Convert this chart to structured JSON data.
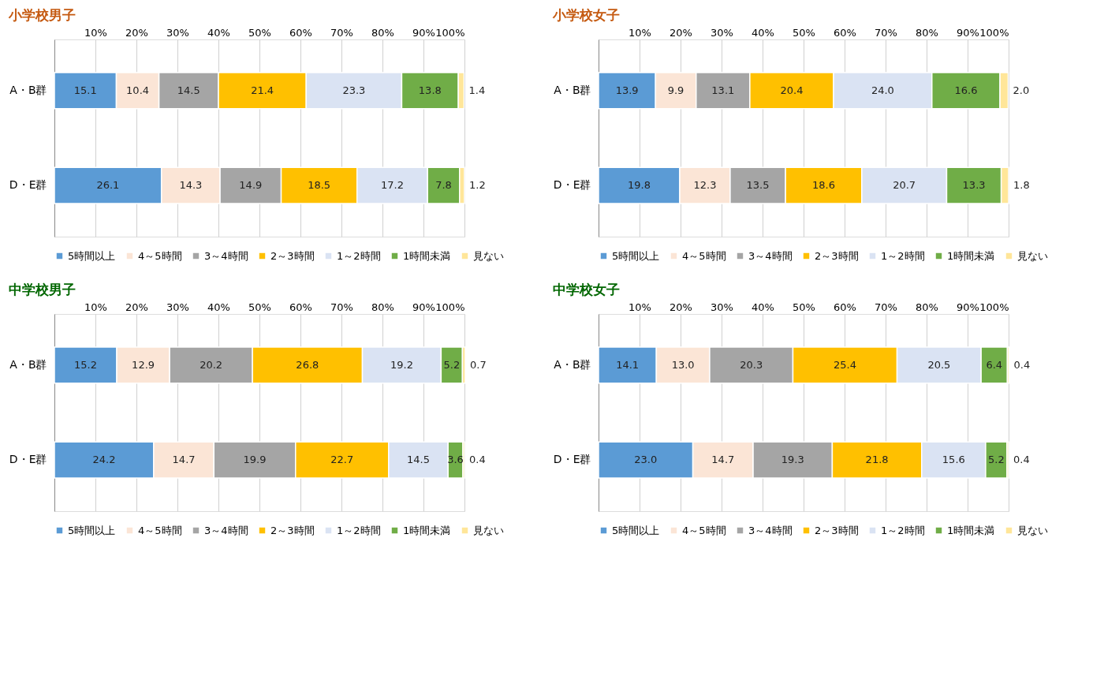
{
  "chart_data": [
    {
      "type": "bar",
      "title": "小学校男子",
      "orientation": "horizontal",
      "stacked": true,
      "categories": [
        "A・B群",
        "D・E群"
      ],
      "xlim": [
        0,
        100
      ],
      "xticks": [
        {
          "value": 10,
          "label": "10%"
        },
        {
          "value": 20,
          "label": "20%"
        },
        {
          "value": 30,
          "label": "30%"
        },
        {
          "value": 40,
          "label": "40%"
        },
        {
          "value": 50,
          "label": "50%"
        },
        {
          "value": 60,
          "label": "60%"
        },
        {
          "value": 70,
          "label": "70%"
        },
        {
          "value": 80,
          "label": "80%"
        },
        {
          "value": 90,
          "label": "90%"
        },
        {
          "value": 100,
          "label": "100%"
        }
      ],
      "grid": "x",
      "legend": "bottom",
      "data_labels": true,
      "series": [
        {
          "name": "5時間以上",
          "color": "#5b9bd5",
          "values": [
            15.1,
            26.1
          ]
        },
        {
          "name": "4～5時間",
          "color": "#fbe5d6",
          "values": [
            10.4,
            14.3
          ]
        },
        {
          "name": "3～4時間",
          "color": "#a5a5a5",
          "values": [
            14.5,
            14.9
          ]
        },
        {
          "name": "2～3時間",
          "color": "#ffc000",
          "values": [
            21.4,
            18.5
          ]
        },
        {
          "name": "1～2時間",
          "color": "#dae3f3",
          "values": [
            23.3,
            17.2
          ]
        },
        {
          "name": "1時間未満",
          "color": "#70ad47",
          "values": [
            13.8,
            7.8
          ]
        },
        {
          "name": "見ない",
          "color": "#ffe699",
          "values": [
            1.4,
            1.2
          ]
        }
      ]
    },
    {
      "type": "bar",
      "title": "小学校女子",
      "orientation": "horizontal",
      "stacked": true,
      "categories": [
        "A・B群",
        "D・E群"
      ],
      "xlim": [
        0,
        100
      ],
      "xticks": [
        {
          "value": 10,
          "label": "10%"
        },
        {
          "value": 20,
          "label": "20%"
        },
        {
          "value": 30,
          "label": "30%"
        },
        {
          "value": 40,
          "label": "40%"
        },
        {
          "value": 50,
          "label": "50%"
        },
        {
          "value": 60,
          "label": "60%"
        },
        {
          "value": 70,
          "label": "70%"
        },
        {
          "value": 80,
          "label": "80%"
        },
        {
          "value": 90,
          "label": "90%"
        },
        {
          "value": 100,
          "label": "100%"
        }
      ],
      "grid": "x",
      "legend": "bottom",
      "data_labels": true,
      "series": [
        {
          "name": "5時間以上",
          "color": "#5b9bd5",
          "values": [
            13.9,
            19.8
          ]
        },
        {
          "name": "4～5時間",
          "color": "#fbe5d6",
          "values": [
            9.9,
            12.3
          ]
        },
        {
          "name": "3～4時間",
          "color": "#a5a5a5",
          "values": [
            13.1,
            13.5
          ]
        },
        {
          "name": "2～3時間",
          "color": "#ffc000",
          "values": [
            20.4,
            18.6
          ]
        },
        {
          "name": "1～2時間",
          "color": "#dae3f3",
          "values": [
            24.0,
            20.7
          ],
          "value_labels": [
            "24.0",
            "20.7"
          ]
        },
        {
          "name": "1時間未満",
          "color": "#70ad47",
          "values": [
            16.6,
            13.3
          ]
        },
        {
          "name": "見ない",
          "color": "#ffe699",
          "values": [
            2.0,
            1.8
          ],
          "value_labels": [
            "2.0",
            "1.8"
          ]
        }
      ]
    },
    {
      "type": "bar",
      "title": "中学校男子",
      "orientation": "horizontal",
      "stacked": true,
      "categories": [
        "A・B群",
        "D・E群"
      ],
      "xlim": [
        0,
        100
      ],
      "xticks": [
        {
          "value": 10,
          "label": "10%"
        },
        {
          "value": 20,
          "label": "20%"
        },
        {
          "value": 30,
          "label": "30%"
        },
        {
          "value": 40,
          "label": "40%"
        },
        {
          "value": 50,
          "label": "50%"
        },
        {
          "value": 60,
          "label": "60%"
        },
        {
          "value": 70,
          "label": "70%"
        },
        {
          "value": 80,
          "label": "80%"
        },
        {
          "value": 90,
          "label": "90%"
        },
        {
          "value": 100,
          "label": "100%"
        }
      ],
      "grid": "x",
      "legend": "bottom",
      "data_labels": true,
      "series": [
        {
          "name": "5時間以上",
          "color": "#5b9bd5",
          "values": [
            15.2,
            24.2
          ]
        },
        {
          "name": "4～5時間",
          "color": "#fbe5d6",
          "values": [
            12.9,
            14.7
          ]
        },
        {
          "name": "3～4時間",
          "color": "#a5a5a5",
          "values": [
            20.2,
            19.9
          ]
        },
        {
          "name": "2～3時間",
          "color": "#ffc000",
          "values": [
            26.8,
            22.7
          ]
        },
        {
          "name": "1～2時間",
          "color": "#dae3f3",
          "values": [
            19.2,
            14.5
          ]
        },
        {
          "name": "1時間未満",
          "color": "#70ad47",
          "values": [
            5.2,
            3.6
          ]
        },
        {
          "name": "見ない",
          "color": "#ffe699",
          "values": [
            0.7,
            0.4
          ]
        }
      ]
    },
    {
      "type": "bar",
      "title": "中学校女子",
      "orientation": "horizontal",
      "stacked": true,
      "categories": [
        "A・B群",
        "D・E群"
      ],
      "xlim": [
        0,
        100
      ],
      "xticks": [
        {
          "value": 10,
          "label": "10%"
        },
        {
          "value": 20,
          "label": "20%"
        },
        {
          "value": 30,
          "label": "30%"
        },
        {
          "value": 40,
          "label": "40%"
        },
        {
          "value": 50,
          "label": "50%"
        },
        {
          "value": 60,
          "label": "60%"
        },
        {
          "value": 70,
          "label": "70%"
        },
        {
          "value": 80,
          "label": "80%"
        },
        {
          "value": 90,
          "label": "90%"
        },
        {
          "value": 100,
          "label": "100%"
        }
      ],
      "grid": "x",
      "legend": "bottom",
      "data_labels": true,
      "series": [
        {
          "name": "5時間以上",
          "color": "#5b9bd5",
          "values": [
            14.1,
            23.0
          ],
          "value_labels": [
            "14.1",
            "23.0"
          ]
        },
        {
          "name": "4～5時間",
          "color": "#fbe5d6",
          "values": [
            13.0,
            14.7
          ],
          "value_labels": [
            "13.0",
            "14.7"
          ]
        },
        {
          "name": "3～4時間",
          "color": "#a5a5a5",
          "values": [
            20.3,
            19.3
          ]
        },
        {
          "name": "2～3時間",
          "color": "#ffc000",
          "values": [
            25.4,
            21.8
          ]
        },
        {
          "name": "1～2時間",
          "color": "#dae3f3",
          "values": [
            20.5,
            15.6
          ]
        },
        {
          "name": "1時間未満",
          "color": "#70ad47",
          "values": [
            6.4,
            5.2
          ]
        },
        {
          "name": "見ない",
          "color": "#ffe699",
          "values": [
            0.4,
            0.4
          ]
        }
      ]
    }
  ]
}
